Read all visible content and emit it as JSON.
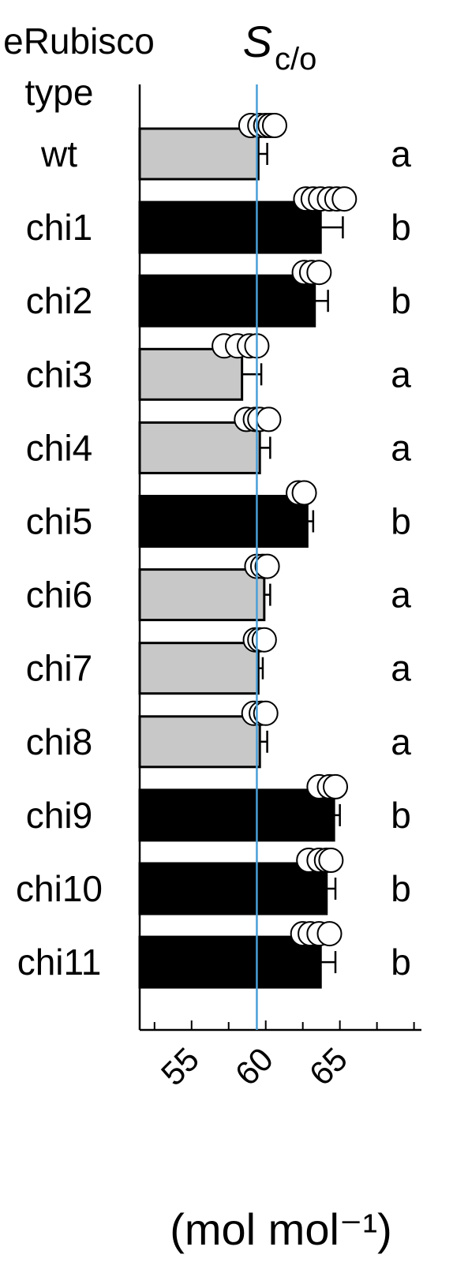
{
  "chart_data": {
    "type": "bar",
    "orientation": "horizontal",
    "title": "S",
    "title_subscript": "c/o",
    "category_axis_title_line1": "eRubisco",
    "category_axis_title_line2": "type",
    "xlabel": "(mol mol⁻¹)",
    "x_ticks": [
      55,
      60,
      65
    ],
    "xlim": [
      51.5,
      70.5
    ],
    "reference_line": 59.4,
    "categories": [
      "wt",
      "chi1",
      "chi2",
      "chi3",
      "chi4",
      "chi5",
      "chi6",
      "chi7",
      "chi8",
      "chi9",
      "chi10",
      "chi11"
    ],
    "values": [
      59.5,
      63.7,
      63.3,
      58.4,
      59.6,
      62.8,
      59.9,
      59.5,
      59.6,
      64.6,
      64.1,
      63.7
    ],
    "errors": [
      0.6,
      1.5,
      0.9,
      1.3,
      0.7,
      0.4,
      0.4,
      0.3,
      0.5,
      0.4,
      0.6,
      1.0
    ],
    "group": [
      "a",
      "b",
      "b",
      "a",
      "a",
      "b",
      "a",
      "a",
      "a",
      "b",
      "b",
      "b"
    ],
    "bar_colors": {
      "a": "#c8c8c8",
      "b": "#000000"
    },
    "reference_line_color": "#4a9fd8",
    "replicates": [
      [
        59.0,
        59.6,
        60.0,
        60.3,
        60.6
      ],
      [
        62.7,
        63.2,
        63.7,
        64.3,
        64.8,
        65.3
      ],
      [
        62.6,
        63.1,
        63.6
      ],
      [
        57.2,
        58.1,
        58.9,
        59.4
      ],
      [
        58.7,
        59.3,
        59.6,
        60.2
      ],
      [
        62.2,
        62.6
      ],
      [
        59.4,
        59.8,
        60.1
      ],
      [
        59.3,
        59.6,
        59.9
      ],
      [
        59.2,
        59.7,
        60.0
      ],
      [
        63.6,
        64.3,
        64.7
      ],
      [
        62.9,
        63.6,
        64.1,
        64.4
      ],
      [
        62.5,
        63.0,
        63.6,
        64.3
      ]
    ]
  }
}
